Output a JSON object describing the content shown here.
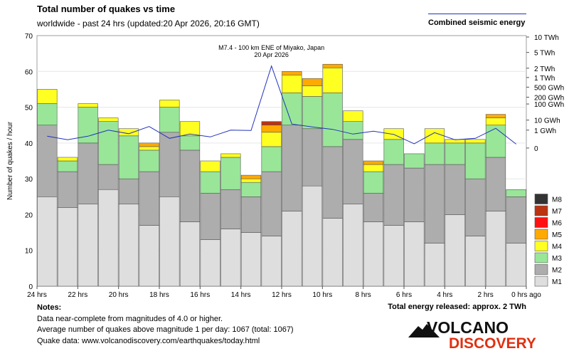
{
  "chart_data": {
    "type": "stacked-bar",
    "title": "Total number of quakes vs time",
    "subtitle": "worldwide - past 24 hrs (updated:20 Apr 2026, 20:16 GMT)",
    "ylabel": "Number of quakes / hour",
    "ylim": [
      0,
      70
    ],
    "yticks": [
      0,
      10,
      20,
      30,
      40,
      50,
      60,
      70
    ],
    "xticks": [
      "24 hrs",
      "22 hrs",
      "20 hrs",
      "18 hrs",
      "16 hrs",
      "14 hrs",
      "12 hrs",
      "10 hrs",
      "8 hrs",
      "6 hrs",
      "4 hrs",
      "2 hrs",
      "0 hrs ago"
    ],
    "series": [
      {
        "name": "M1",
        "color": "#dedede",
        "values": [
          25,
          22,
          23,
          27,
          23,
          17,
          25,
          18,
          13,
          16,
          15,
          14,
          21,
          28,
          19,
          23,
          18,
          17,
          18,
          12,
          20,
          14,
          21,
          12
        ]
      },
      {
        "name": "M2",
        "color": "#adadad",
        "values": [
          20,
          10,
          17,
          7,
          7,
          15,
          18,
          20,
          13,
          11,
          10,
          18,
          24,
          16,
          20,
          18,
          8,
          17,
          15,
          22,
          14,
          16,
          15,
          13
        ]
      },
      {
        "name": "M3",
        "color": "#99e699",
        "values": [
          6,
          3,
          10,
          12,
          12,
          6,
          7,
          4,
          6,
          9,
          4,
          7,
          9,
          9,
          15,
          5,
          6,
          7,
          4,
          6,
          6,
          10,
          9,
          2
        ]
      },
      {
        "name": "M4",
        "color": "#ffff22",
        "values": [
          4,
          1,
          1,
          1,
          2,
          1,
          2,
          4,
          3,
          1,
          1,
          4,
          5,
          3,
          7,
          3,
          2,
          3,
          0,
          4,
          1,
          1,
          2,
          0
        ]
      },
      {
        "name": "M5",
        "color": "#ffaa00",
        "values": [
          0,
          0,
          0,
          0,
          0,
          1,
          0,
          0,
          0,
          0,
          1,
          2,
          1,
          2,
          1,
          0,
          1,
          0,
          0,
          0,
          0,
          0,
          1,
          0
        ]
      },
      {
        "name": "M6",
        "color": "#ff1111",
        "values": [
          0,
          0,
          0,
          0,
          0,
          0,
          0,
          0,
          0,
          0,
          0,
          0,
          0,
          0,
          0,
          0,
          0,
          0,
          0,
          0,
          0,
          0,
          0,
          0
        ]
      },
      {
        "name": "M7",
        "color": "#bb3311",
        "values": [
          0,
          0,
          0,
          0,
          0,
          0,
          0,
          0,
          0,
          0,
          0,
          1,
          0,
          0,
          0,
          0,
          0,
          0,
          0,
          0,
          0,
          0,
          0,
          0
        ]
      },
      {
        "name": "M8",
        "color": "#333333",
        "values": [
          0,
          0,
          0,
          0,
          0,
          0,
          0,
          0,
          0,
          0,
          0,
          0,
          0,
          0,
          0,
          0,
          0,
          0,
          0,
          0,
          0,
          0,
          0,
          0
        ]
      }
    ],
    "energy_line": {
      "name": "Combined seismic energy",
      "color": "#2233bb",
      "right_axis_labels": [
        "10 TWh",
        "5 TWh",
        "2 TWh",
        "1 TWh",
        "500 GWh",
        "200 GWh",
        "100 GWh",
        "10 GWh",
        "1 GWh",
        "0"
      ],
      "right_axis_values": [
        69.6,
        65.3,
        60.9,
        58.3,
        55.6,
        52.8,
        50.9,
        46.4,
        43.6,
        38.6
      ],
      "values": [
        41.9,
        40.9,
        41.9,
        43.6,
        42.6,
        44.6,
        41.3,
        42.5,
        41.7,
        43.6,
        43.5,
        61.5,
        45.3,
        44.5,
        43.8,
        42.5,
        43.3,
        42.4,
        39.8,
        42.9,
        40.9,
        41.3,
        44.1,
        39.7
      ]
    },
    "annotation": {
      "text": [
        "M7.4 - 100 km ENE of Miyako, Japan",
        "20 Apr 2026"
      ]
    },
    "legend": [
      "M8",
      "M7",
      "M6",
      "M5",
      "M4",
      "M3",
      "M2",
      "M1"
    ],
    "legend_position": "right"
  },
  "notes": {
    "header": "Notes:",
    "lines": [
      "Data near-complete from magnitudes of 4.0 or higher.",
      "Average number of quakes above magnitude 1 per day: 1067 (total: 1067)",
      "Quake data: www.volcanodiscovery.com/earthquakes/today.html"
    ]
  },
  "total_energy": "Total energy released: approx. 2 TWh",
  "logo": {
    "line1": "VOLCANO",
    "line2": "DISCOVERY"
  }
}
